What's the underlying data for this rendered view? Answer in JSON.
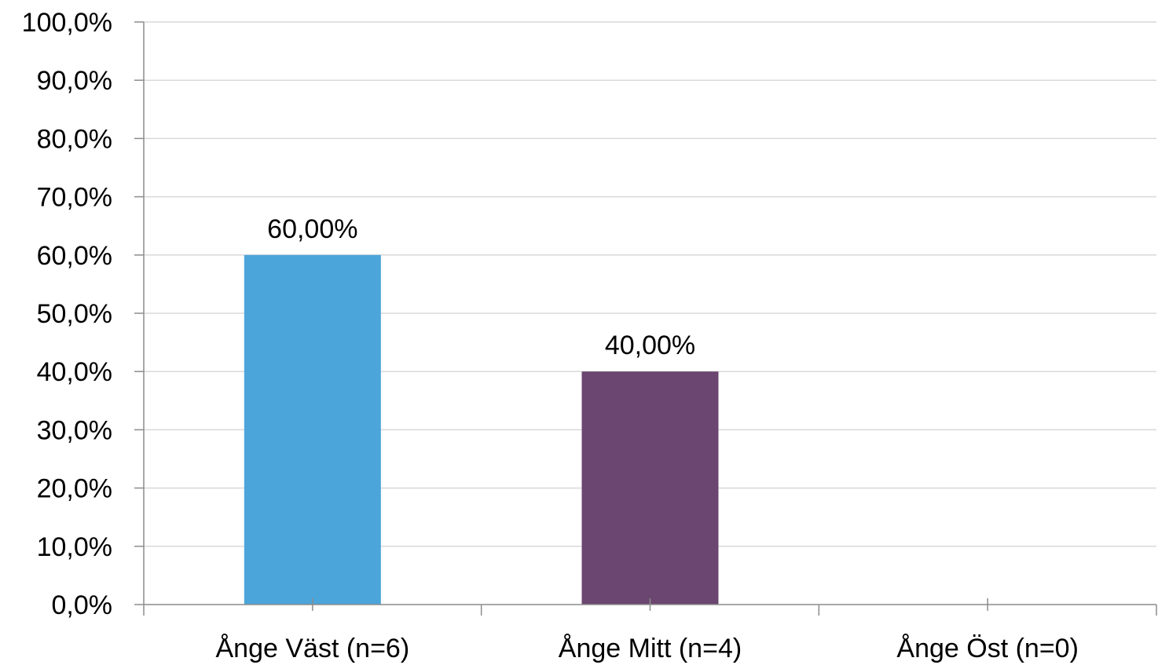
{
  "chart_data": {
    "type": "bar",
    "categories": [
      "Ånge Väst (n=6)",
      "Ånge Mitt (n=4)",
      "Ånge Öst (n=0)"
    ],
    "values": [
      60.0,
      40.0,
      0.0
    ],
    "data_labels": [
      "60,00%",
      "40,00%",
      ""
    ],
    "bar_colors": [
      "#4BA5DA",
      "#6B4670",
      "#000000"
    ],
    "ylim": [
      0,
      100
    ],
    "yticks": [
      0,
      10,
      20,
      30,
      40,
      50,
      60,
      70,
      80,
      90,
      100
    ],
    "ytick_labels": [
      "0,0%",
      "10,0%",
      "20,0%",
      "30,0%",
      "40,0%",
      "50,0%",
      "60,0%",
      "70,0%",
      "80,0%",
      "90,0%",
      "100,0%"
    ],
    "grid": true,
    "grid_color": "#d9d9d9",
    "axis_color": "#8c8c8c",
    "title": "",
    "xlabel": "",
    "ylabel": ""
  }
}
